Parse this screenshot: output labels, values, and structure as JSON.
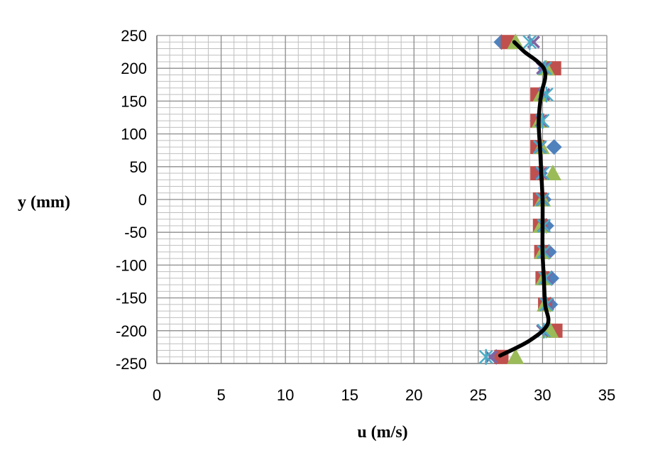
{
  "chart_data": {
    "type": "scatter",
    "title": "",
    "xlabel": "u (m/s)",
    "ylabel": "y (mm)",
    "xlim": [
      0,
      35
    ],
    "ylim": [
      -250,
      250
    ],
    "xticks": [
      0,
      5,
      10,
      15,
      20,
      25,
      30,
      35
    ],
    "yticks": [
      -250,
      -200,
      -150,
      -100,
      -50,
      0,
      50,
      100,
      150,
      200,
      250
    ],
    "xtick_labels": [
      "0",
      "5",
      "10",
      "15",
      "20",
      "25",
      "30",
      "35"
    ],
    "ytick_labels": [
      "-250",
      "-200",
      "-150",
      "-100",
      "-50",
      "0",
      "50",
      "100",
      "150",
      "200",
      "250"
    ],
    "grid": true,
    "legend": "none",
    "series": [
      {
        "marker": "diamond",
        "color": "#4f81bd",
        "points": [
          [
            26.8,
            240
          ],
          [
            30.2,
            200
          ],
          [
            29.8,
            160
          ],
          [
            29.6,
            120
          ],
          [
            30.9,
            80
          ],
          [
            29.8,
            40
          ],
          [
            30.1,
            0
          ],
          [
            30.3,
            -40
          ],
          [
            30.5,
            -80
          ],
          [
            30.7,
            -120
          ],
          [
            30.6,
            -160
          ],
          [
            30.3,
            -200
          ],
          [
            26.4,
            -240
          ]
        ]
      },
      {
        "marker": "square",
        "color": "#c0504d",
        "points": [
          [
            27.3,
            240
          ],
          [
            30.9,
            200
          ],
          [
            29.6,
            160
          ],
          [
            29.6,
            120
          ],
          [
            29.6,
            80
          ],
          [
            29.6,
            40
          ],
          [
            29.8,
            0
          ],
          [
            29.8,
            -40
          ],
          [
            29.9,
            -80
          ],
          [
            30.0,
            -120
          ],
          [
            30.2,
            -160
          ],
          [
            31.0,
            -200
          ],
          [
            26.8,
            -240
          ]
        ]
      },
      {
        "marker": "triangle",
        "color": "#9bbb59",
        "points": [
          [
            27.9,
            240
          ],
          [
            30.3,
            200
          ],
          [
            29.9,
            160
          ],
          [
            29.8,
            120
          ],
          [
            29.9,
            80
          ],
          [
            30.8,
            40
          ],
          [
            30.0,
            0
          ],
          [
            29.9,
            -40
          ],
          [
            30.0,
            -80
          ],
          [
            30.1,
            -120
          ],
          [
            30.2,
            -160
          ],
          [
            30.6,
            -200
          ],
          [
            27.9,
            -240
          ]
        ]
      },
      {
        "marker": "x",
        "color": "#8064a2",
        "points": [
          [
            29.3,
            240
          ],
          [
            30.0,
            200
          ],
          [
            30.1,
            160
          ],
          [
            29.9,
            120
          ],
          [
            29.8,
            80
          ],
          [
            29.9,
            40
          ],
          [
            30.0,
            0
          ],
          [
            30.1,
            -40
          ],
          [
            30.2,
            -80
          ],
          [
            30.3,
            -120
          ],
          [
            30.4,
            -160
          ],
          [
            30.0,
            -200
          ],
          [
            26.0,
            -240
          ]
        ]
      },
      {
        "marker": "star",
        "color": "#4bacc6",
        "points": [
          [
            29.0,
            240
          ],
          [
            30.2,
            200
          ],
          [
            30.3,
            160
          ],
          [
            30.0,
            120
          ],
          [
            29.8,
            80
          ],
          [
            30.0,
            40
          ],
          [
            30.0,
            0
          ],
          [
            30.1,
            -40
          ],
          [
            30.1,
            -80
          ],
          [
            30.2,
            -120
          ],
          [
            30.3,
            -160
          ],
          [
            30.1,
            -200
          ],
          [
            25.6,
            -240
          ]
        ]
      },
      {
        "marker": "line",
        "color": "#000000",
        "points": [
          [
            27.8,
            240
          ],
          [
            28.6,
            225
          ],
          [
            29.5,
            212
          ],
          [
            30.1,
            200
          ],
          [
            30.2,
            185
          ],
          [
            29.9,
            160
          ],
          [
            29.7,
            120
          ],
          [
            29.8,
            80
          ],
          [
            29.9,
            40
          ],
          [
            30.0,
            0
          ],
          [
            30.0,
            -40
          ],
          [
            30.0,
            -80
          ],
          [
            30.1,
            -120
          ],
          [
            30.2,
            -160
          ],
          [
            30.4,
            -190
          ],
          [
            29.0,
            -215
          ],
          [
            26.7,
            -238
          ]
        ]
      }
    ]
  }
}
